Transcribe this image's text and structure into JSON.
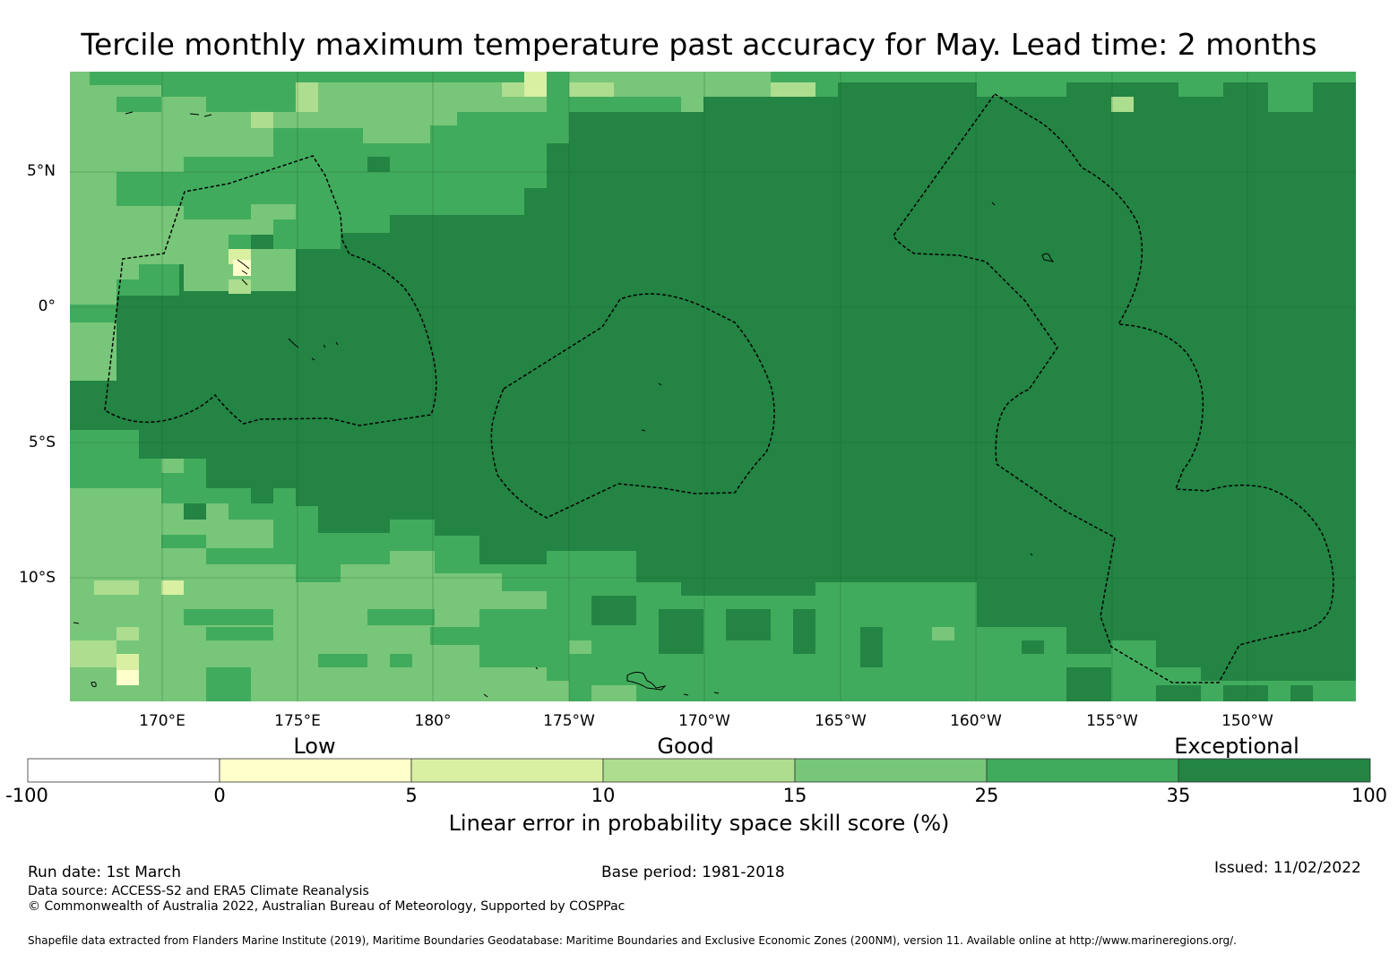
{
  "title": "Tercile monthly maximum temperature past accuracy for May. Lead time: 2 months",
  "map": {
    "lat_labels": [
      "5°N",
      "0°",
      "5°S",
      "10°S"
    ],
    "lon_labels": [
      "170°E",
      "175°E",
      "180°",
      "175°W",
      "170°W",
      "165°W",
      "160°W",
      "155°W",
      "150°W"
    ],
    "colors": {
      "gt35": "#238443",
      "25_35": "#41ab5d",
      "15_25": "#78c679",
      "10_15": "#addd8e",
      "5_10": "#d9f0a3",
      "0_5": "#ffffcc",
      "lt0": "#ffffff",
      "eez_line": "#000000"
    }
  },
  "colorbar": {
    "categories": [
      "Low",
      "Good",
      "Exceptional"
    ],
    "ticks": [
      "-100",
      "0",
      "5",
      "10",
      "15",
      "25",
      "35",
      "100"
    ],
    "colors": [
      "#ffffff",
      "#ffffcc",
      "#d9f0a3",
      "#addd8e",
      "#78c679",
      "#41ab5d",
      "#238443"
    ],
    "label": "Linear error in probability space skill score (%)"
  },
  "footer": {
    "run_date": "Run date: 1st March",
    "base_period": "Base period: 1981-2018",
    "issued": "Issued: 11/02/2022",
    "data_source": "Data source: ACCESS-S2 and ERA5 Climate Reanalysis",
    "copyright": "© Commonwealth of Australia 2022, Australian Bureau of Meteorology, Supported by COSPPac",
    "shapefile": "Shapefile data extracted from Flanders Marine Institute (2019), Maritime Boundaries Geodatabase: Maritime Boundaries and Exclusive Economic Zones (200NM), version 11. Available online at http://www.marineregions.org/."
  }
}
